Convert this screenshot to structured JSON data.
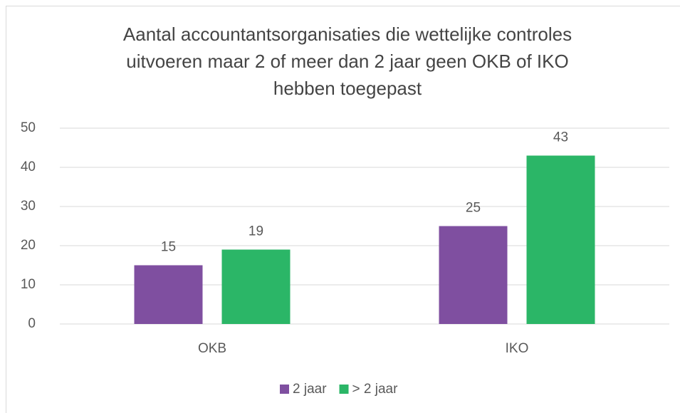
{
  "chart_data": {
    "type": "bar",
    "title": [
      "Aantal accountantsorganisaties die wettelijke controles",
      "uitvoeren maar 2 of meer dan 2 jaar geen OKB of IKO",
      "hebben toegepast"
    ],
    "categories": [
      "OKB",
      "IKO"
    ],
    "series": [
      {
        "name": "2 jaar",
        "color": "#7f4fa0",
        "values": [
          15,
          25
        ]
      },
      {
        "name": "> 2 jaar",
        "color": "#2bb667",
        "values": [
          19,
          43
        ]
      }
    ],
    "ylim": [
      0,
      50
    ],
    "yticks": [
      0,
      10,
      20,
      30,
      40,
      50
    ],
    "grid": true,
    "legend": "bottom"
  }
}
